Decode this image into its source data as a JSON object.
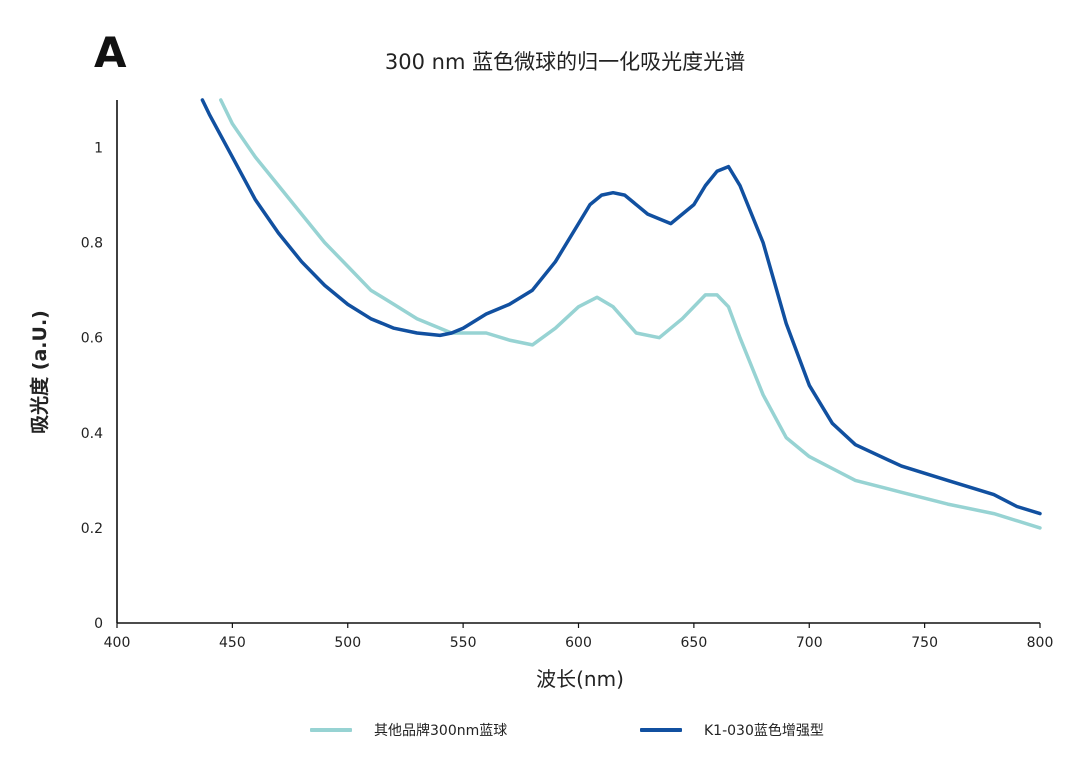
{
  "panel_label": "A",
  "chart_data": {
    "type": "line",
    "title": "300 nm 蓝色微球的归一化吸光度光谱",
    "xlabel": "波长(nm)",
    "ylabel": "吸光度 (a.U.)",
    "xlim": [
      400,
      800
    ],
    "ylim": [
      0,
      1.1
    ],
    "x_ticks": [
      "400",
      "450",
      "500",
      "550",
      "600",
      "650",
      "700",
      "750",
      "800"
    ],
    "y_ticks": [
      "0",
      "0.2",
      "0.4",
      "0.6",
      "0.8",
      "1"
    ],
    "grid": false,
    "legend_position": "bottom",
    "series": [
      {
        "name": "其他品牌300nm蓝球",
        "color": "#97d3d3",
        "x": [
          445,
          450,
          460,
          470,
          480,
          490,
          500,
          510,
          520,
          530,
          540,
          545,
          550,
          560,
          570,
          580,
          590,
          600,
          608,
          615,
          625,
          635,
          645,
          655,
          660,
          665,
          670,
          680,
          690,
          700,
          710,
          720,
          740,
          760,
          780,
          800
        ],
        "y": [
          1.1,
          1.05,
          0.98,
          0.92,
          0.86,
          0.8,
          0.75,
          0.7,
          0.67,
          0.64,
          0.62,
          0.61,
          0.61,
          0.61,
          0.595,
          0.585,
          0.62,
          0.665,
          0.685,
          0.665,
          0.61,
          0.6,
          0.64,
          0.69,
          0.69,
          0.665,
          0.6,
          0.48,
          0.39,
          0.35,
          0.325,
          0.3,
          0.275,
          0.25,
          0.23,
          0.2
        ]
      },
      {
        "name": "K1-030蓝色增强型",
        "color": "#1150a0",
        "x": [
          437,
          440,
          450,
          460,
          470,
          480,
          490,
          500,
          510,
          520,
          530,
          540,
          545,
          550,
          560,
          570,
          580,
          590,
          600,
          605,
          610,
          615,
          620,
          630,
          640,
          650,
          655,
          660,
          665,
          670,
          680,
          690,
          700,
          710,
          720,
          740,
          760,
          780,
          790,
          800
        ],
        "y": [
          1.1,
          1.07,
          0.98,
          0.89,
          0.82,
          0.76,
          0.71,
          0.67,
          0.64,
          0.62,
          0.61,
          0.605,
          0.61,
          0.62,
          0.65,
          0.67,
          0.7,
          0.76,
          0.84,
          0.88,
          0.9,
          0.905,
          0.9,
          0.86,
          0.84,
          0.88,
          0.92,
          0.95,
          0.96,
          0.92,
          0.8,
          0.63,
          0.5,
          0.42,
          0.375,
          0.33,
          0.3,
          0.27,
          0.245,
          0.23
        ]
      }
    ]
  }
}
